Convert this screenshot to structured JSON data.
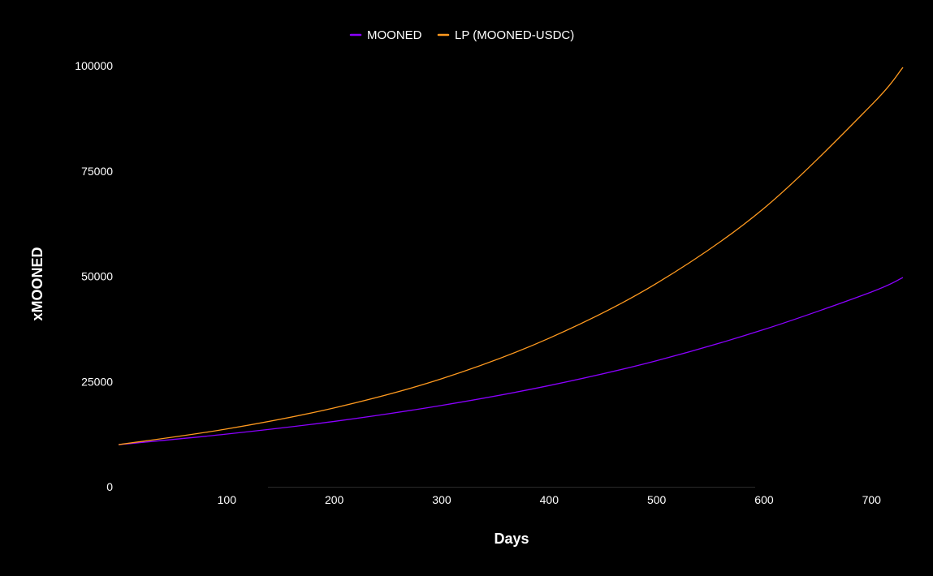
{
  "chart_data": {
    "type": "line",
    "xlabel": "Days",
    "ylabel": "xMOONED",
    "xlim": [
      0,
      730
    ],
    "ylim": [
      0,
      100000
    ],
    "x_ticks": [
      100,
      200,
      300,
      400,
      500,
      600,
      700
    ],
    "y_ticks": [
      0,
      25000,
      50000,
      75000,
      100000
    ],
    "grid": false,
    "legend_position": "top-center",
    "series": [
      {
        "name": "MOONED",
        "color": "#8b00ff",
        "x": [
          0,
          100,
          200,
          300,
          400,
          500,
          600,
          700,
          730
        ],
        "y": [
          10000,
          12500,
          15500,
          19300,
          24000,
          29900,
          37300,
          46200,
          49700
        ]
      },
      {
        "name": "LP (MOONED-USDC)",
        "color": "#ff9a1f",
        "x": [
          0,
          100,
          200,
          300,
          400,
          500,
          600,
          700,
          730
        ],
        "y": [
          10000,
          13700,
          18700,
          25600,
          35200,
          48200,
          66000,
          90500,
          99600
        ]
      }
    ]
  }
}
